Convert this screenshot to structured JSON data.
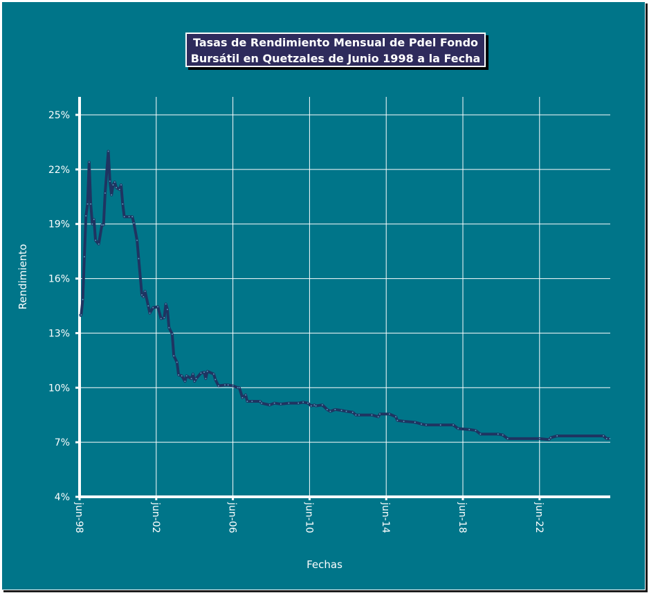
{
  "chart_data": {
    "type": "line",
    "title": [
      "Tasas de Rendimiento Mensual de Pdel Fondo",
      "Bursátil en Quetzales de Junio 1998 a la Fecha"
    ],
    "xlabel": "Fechas",
    "ylabel": "Rendimiento",
    "x_ticks": [
      "jun-98",
      "jun-02",
      "jun-06",
      "jun-10",
      "jun-14",
      "jun-18",
      "jun-22"
    ],
    "x_tick_dates": [
      "1998-06",
      "2002-06",
      "2006-06",
      "2010-06",
      "2014-06",
      "2018-06",
      "2022-06"
    ],
    "y_ticks": [
      "4%",
      "7%",
      "10%",
      "13%",
      "16%",
      "19%",
      "22%",
      "25%"
    ],
    "ylim": [
      4,
      25
    ],
    "xlim": [
      "1998-06",
      "2026-02"
    ],
    "grid": true,
    "legend": "none",
    "colors": {
      "background": "#007589",
      "line": "#1f3461",
      "marker": "#5fa8c8",
      "grid": "#ffffff",
      "title_box": "#2e2b5c"
    },
    "series": [
      {
        "points": [
          [
            "1998-06",
            13.95
          ],
          [
            "1998-07",
            14.0
          ],
          [
            "1998-08",
            14.85
          ],
          [
            "1998-09",
            17.2
          ],
          [
            "1998-10",
            19.45
          ],
          [
            "1998-11",
            20.1
          ],
          [
            "1998-12",
            22.4
          ],
          [
            "1999-01",
            20.1
          ],
          [
            "1999-02",
            19.0
          ],
          [
            "1999-03",
            19.25
          ],
          [
            "1999-04",
            18.1
          ],
          [
            "1999-06",
            17.9
          ],
          [
            "1999-08",
            18.95
          ],
          [
            "1999-09",
            18.95
          ],
          [
            "1999-10",
            20.7
          ],
          [
            "1999-12",
            23.0
          ],
          [
            "2000-01",
            21.35
          ],
          [
            "2000-02",
            20.6
          ],
          [
            "2000-03",
            21.15
          ],
          [
            "2000-04",
            21.3
          ],
          [
            "2000-05",
            21.0
          ],
          [
            "2000-07",
            20.9
          ],
          [
            "2000-08",
            21.15
          ],
          [
            "2000-09",
            20.1
          ],
          [
            "2000-10",
            19.4
          ],
          [
            "2001-01",
            19.4
          ],
          [
            "2001-03",
            19.4
          ],
          [
            "2001-04",
            19.05
          ],
          [
            "2001-06",
            18.1
          ],
          [
            "2001-07",
            17.1
          ],
          [
            "2001-09",
            15.1
          ],
          [
            "2001-10",
            15.0
          ],
          [
            "2001-11",
            15.3
          ],
          [
            "2002-01",
            14.5
          ],
          [
            "2002-02",
            14.1
          ],
          [
            "2002-04",
            14.4
          ],
          [
            "2002-07",
            14.45
          ],
          [
            "2002-09",
            13.8
          ],
          [
            "2002-11",
            13.85
          ],
          [
            "2002-12",
            14.6
          ],
          [
            "2003-01",
            14.3
          ],
          [
            "2003-02",
            13.3
          ],
          [
            "2003-04",
            12.95
          ],
          [
            "2003-05",
            11.75
          ],
          [
            "2003-07",
            11.4
          ],
          [
            "2003-08",
            10.7
          ],
          [
            "2003-10",
            10.65
          ],
          [
            "2003-12",
            10.35
          ],
          [
            "2004-01",
            10.65
          ],
          [
            "2004-04",
            10.5
          ],
          [
            "2004-05",
            10.75
          ],
          [
            "2004-06",
            10.35
          ],
          [
            "2004-07",
            10.5
          ],
          [
            "2004-10",
            10.8
          ],
          [
            "2004-12",
            10.85
          ],
          [
            "2005-01",
            10.5
          ],
          [
            "2005-02",
            10.9
          ],
          [
            "2005-06",
            10.75
          ],
          [
            "2005-07",
            10.45
          ],
          [
            "2005-09",
            10.1
          ],
          [
            "2006-01",
            10.15
          ],
          [
            "2006-03",
            10.15
          ],
          [
            "2006-06",
            10.1
          ],
          [
            "2006-09",
            10.0
          ],
          [
            "2006-10",
            10.0
          ],
          [
            "2006-12",
            9.45
          ],
          [
            "2007-02",
            9.6
          ],
          [
            "2007-03",
            9.25
          ],
          [
            "2007-06",
            9.25
          ],
          [
            "2007-11",
            9.25
          ],
          [
            "2007-12",
            9.15
          ],
          [
            "2008-05",
            9.05
          ],
          [
            "2008-08",
            9.15
          ],
          [
            "2008-12",
            9.1
          ],
          [
            "2009-05",
            9.15
          ],
          [
            "2009-11",
            9.15
          ],
          [
            "2010-02",
            9.2
          ],
          [
            "2010-05",
            9.15
          ],
          [
            "2010-07",
            9.0
          ],
          [
            "2010-09",
            9.05
          ],
          [
            "2010-10",
            9.0
          ],
          [
            "2011-02",
            9.05
          ],
          [
            "2011-05",
            8.8
          ],
          [
            "2011-07",
            8.7
          ],
          [
            "2011-10",
            8.8
          ],
          [
            "2012-02",
            8.75
          ],
          [
            "2012-05",
            8.7
          ],
          [
            "2012-09",
            8.65
          ],
          [
            "2012-11",
            8.5
          ],
          [
            "2013-01",
            8.5
          ],
          [
            "2013-09",
            8.5
          ],
          [
            "2014-01",
            8.4
          ],
          [
            "2014-02",
            8.55
          ],
          [
            "2014-08",
            8.55
          ],
          [
            "2014-12",
            8.4
          ],
          [
            "2015-01",
            8.2
          ],
          [
            "2015-05",
            8.15
          ],
          [
            "2015-12",
            8.1
          ],
          [
            "2016-04",
            8.0
          ],
          [
            "2016-07",
            7.95
          ],
          [
            "2017-04",
            7.95
          ],
          [
            "2017-12",
            7.95
          ],
          [
            "2018-03",
            7.75
          ],
          [
            "2018-10",
            7.7
          ],
          [
            "2019-02",
            7.65
          ],
          [
            "2019-05",
            7.45
          ],
          [
            "2020-04",
            7.45
          ],
          [
            "2020-07",
            7.4
          ],
          [
            "2020-10",
            7.2
          ],
          [
            "2022-06",
            7.2
          ],
          [
            "2022-12",
            7.15
          ],
          [
            "2023-01",
            7.25
          ],
          [
            "2023-05",
            7.35
          ],
          [
            "2025-10",
            7.35
          ],
          [
            "2025-12",
            7.2
          ],
          [
            "2026-02",
            7.2
          ]
        ]
      }
    ]
  }
}
